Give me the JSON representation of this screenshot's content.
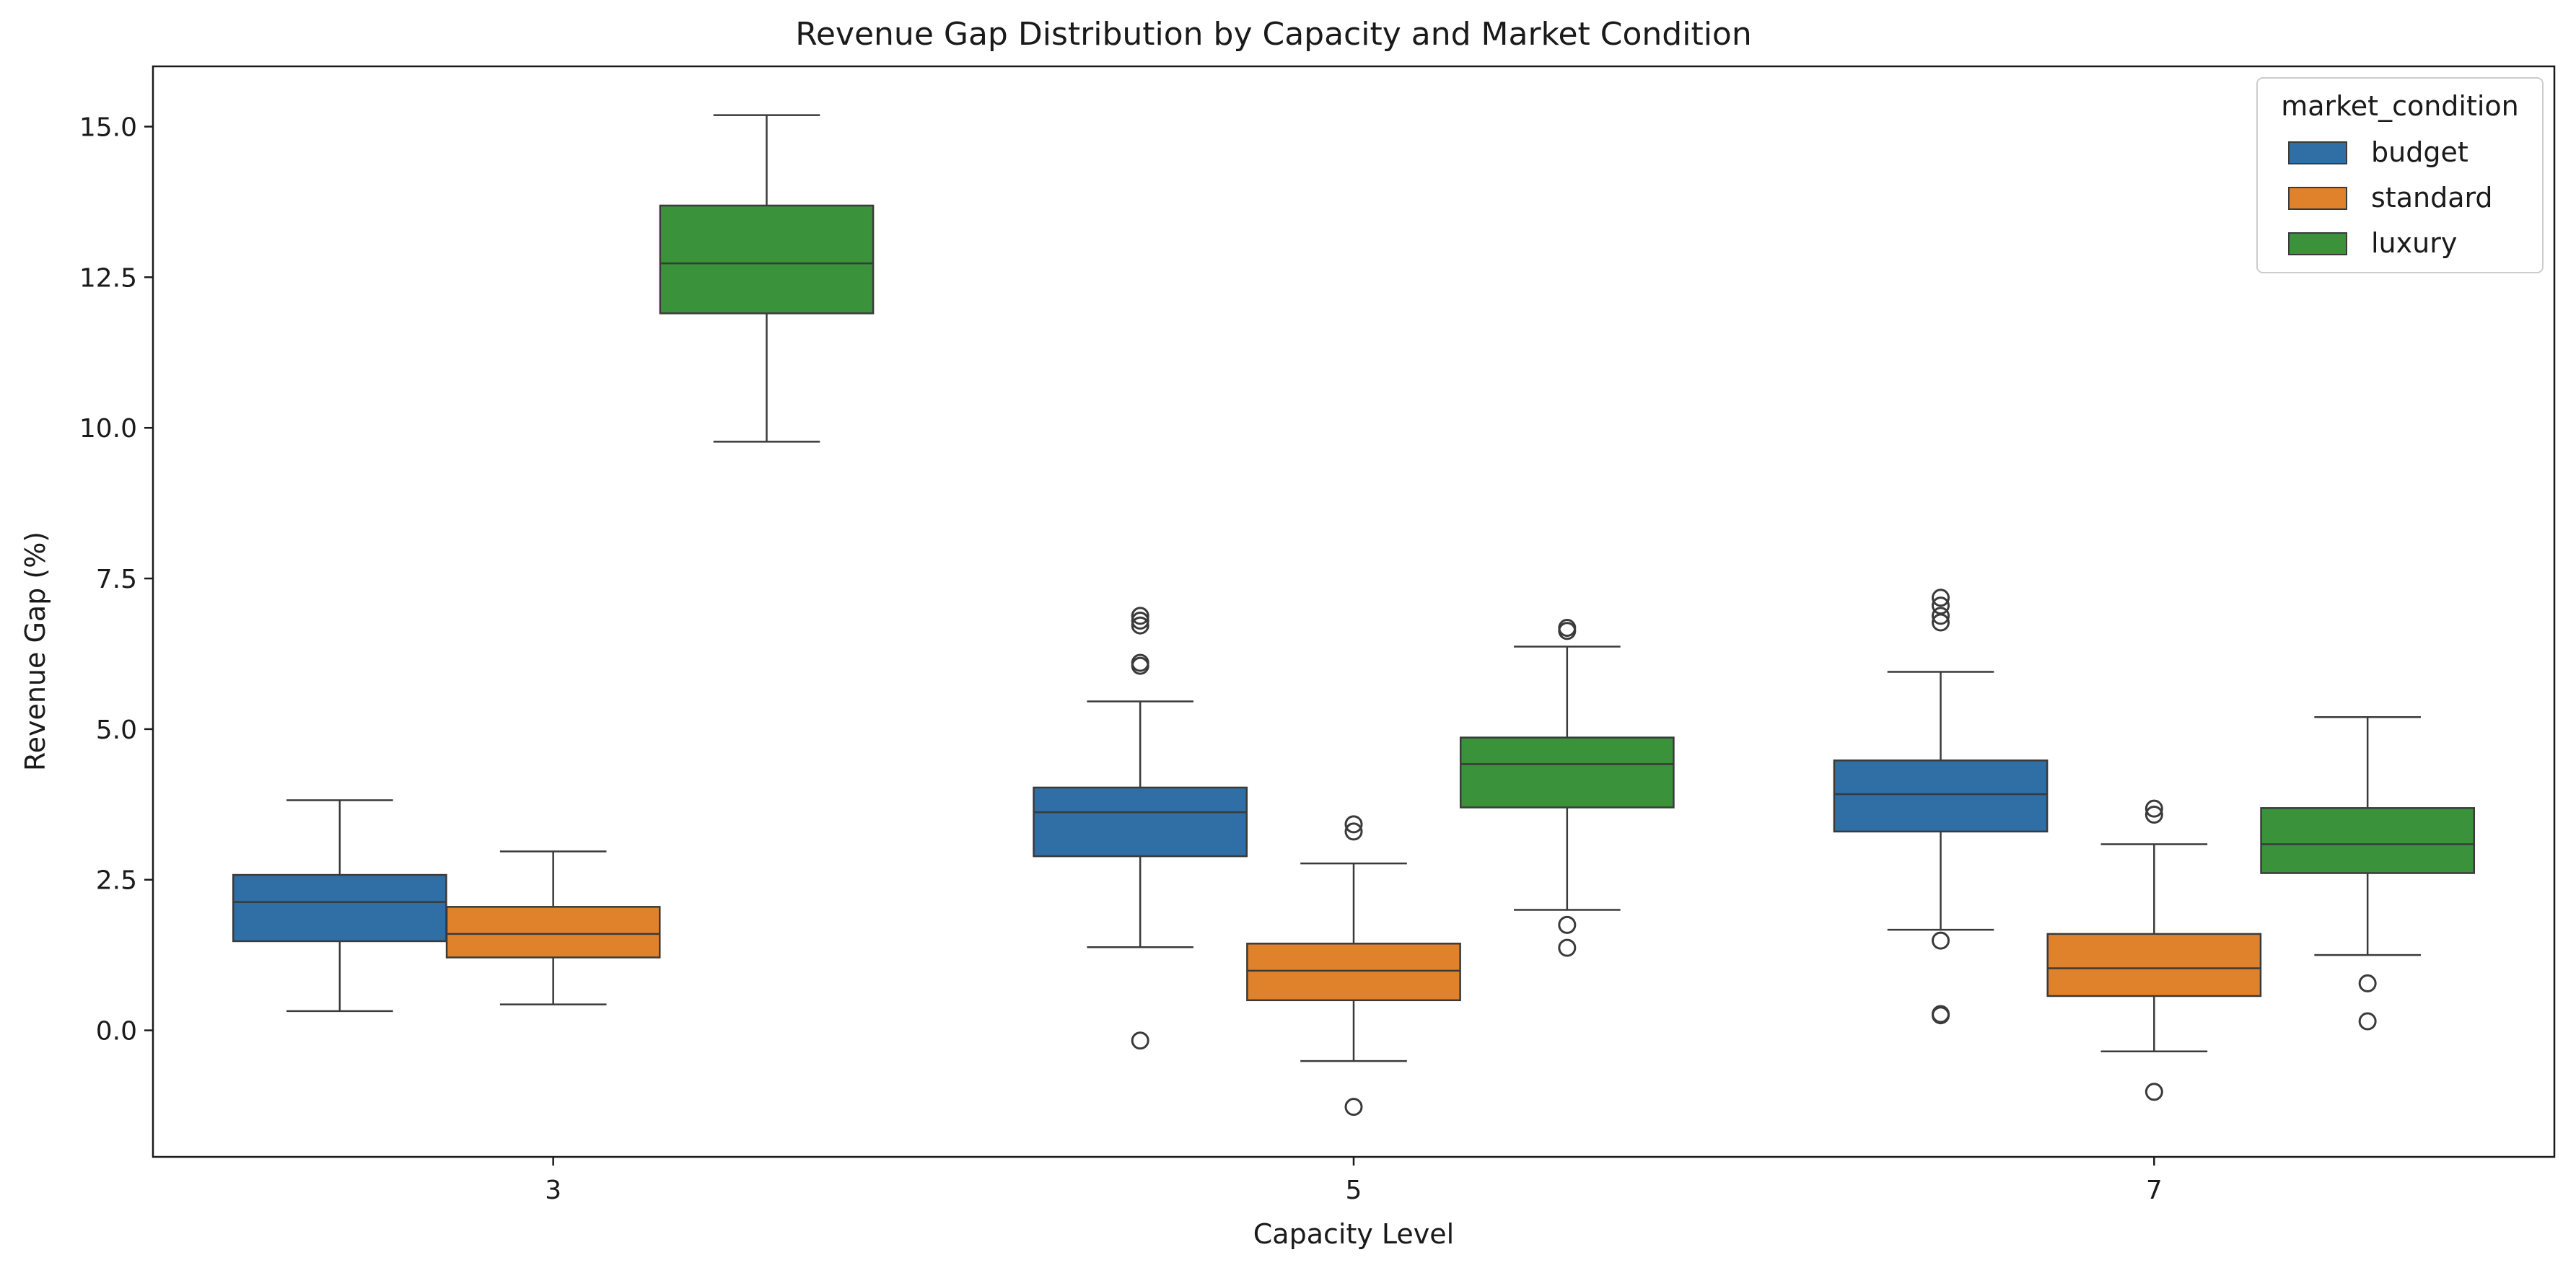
{
  "chart_data": {
    "type": "box",
    "title": "Revenue Gap Distribution by Capacity and Market Condition",
    "xlabel": "Capacity Level",
    "ylabel": "Revenue Gap (%)",
    "categories": [
      "3",
      "5",
      "7"
    ],
    "ylim": [
      -2.1,
      16.0
    ],
    "yticks": [
      "0.0",
      "2.5",
      "5.0",
      "7.5",
      "10.0",
      "12.5",
      "15.0"
    ],
    "grid": false,
    "legend": {
      "title": "market_condition",
      "position": "top-right"
    },
    "series": [
      {
        "name": "budget",
        "color": "#2f6fa5",
        "boxes": [
          {
            "whisker_low": 0.32,
            "q1": 1.48,
            "median": 2.13,
            "q3": 2.58,
            "whisker_high": 3.82,
            "outliers": []
          },
          {
            "whisker_low": 1.38,
            "q1": 2.89,
            "median": 3.62,
            "q3": 4.03,
            "whisker_high": 5.46,
            "outliers": [
              -0.17,
              6.05,
              6.1,
              6.72,
              6.8,
              6.88
            ]
          },
          {
            "whisker_low": 1.67,
            "q1": 3.3,
            "median": 3.92,
            "q3": 4.48,
            "whisker_high": 5.95,
            "outliers": [
              0.25,
              0.27,
              1.49,
              6.77,
              6.88,
              7.05,
              7.18
            ]
          }
        ]
      },
      {
        "name": "standard",
        "color": "#e0822b",
        "boxes": [
          {
            "whisker_low": 0.43,
            "q1": 1.21,
            "median": 1.6,
            "q3": 2.05,
            "whisker_high": 2.97,
            "outliers": []
          },
          {
            "whisker_low": -0.51,
            "q1": 0.5,
            "median": 0.99,
            "q3": 1.44,
            "whisker_high": 2.77,
            "outliers": [
              -1.27,
              3.3,
              3.42
            ]
          },
          {
            "whisker_low": -0.35,
            "q1": 0.57,
            "median": 1.03,
            "q3": 1.6,
            "whisker_high": 3.09,
            "outliers": [
              -1.02,
              3.58,
              3.68
            ]
          }
        ]
      },
      {
        "name": "luxury",
        "color": "#3a923a",
        "boxes": [
          {
            "whisker_low": 9.77,
            "q1": 11.9,
            "median": 12.73,
            "q3": 13.69,
            "whisker_high": 15.19,
            "outliers": []
          },
          {
            "whisker_low": 2.0,
            "q1": 3.7,
            "median": 4.42,
            "q3": 4.86,
            "whisker_high": 6.37,
            "outliers": [
              1.37,
              1.75,
              6.63,
              6.68
            ]
          },
          {
            "whisker_low": 1.25,
            "q1": 2.61,
            "median": 3.09,
            "q3": 3.69,
            "whisker_high": 5.2,
            "outliers": [
              0.15,
              0.78
            ]
          }
        ]
      }
    ]
  }
}
